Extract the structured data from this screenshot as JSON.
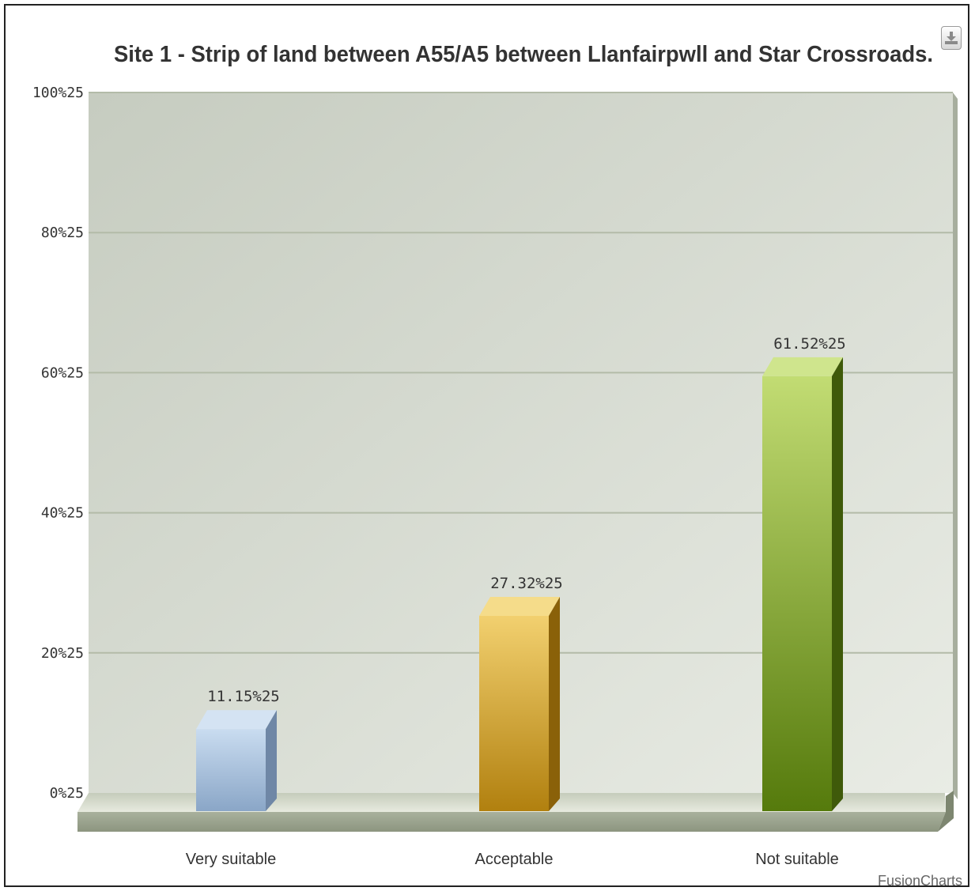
{
  "chart_data": {
    "type": "bar",
    "title": "Site 1 - Strip of land between A55/A5 between Llanfairpwll and Star Crossroads.",
    "categories": [
      "Very suitable",
      "Acceptable",
      "Not suitable"
    ],
    "values": [
      11.15,
      27.32,
      61.52
    ],
    "value_labels": [
      "11.15%25",
      "27.32%25",
      "61.52%25"
    ],
    "yticks": [
      {
        "value": 0,
        "label": "0%25"
      },
      {
        "value": 20,
        "label": "20%25"
      },
      {
        "value": 40,
        "label": "40%25"
      },
      {
        "value": 60,
        "label": "60%25"
      },
      {
        "value": 80,
        "label": "80%25"
      },
      {
        "value": 100,
        "label": "100%25"
      }
    ],
    "ylim": [
      0,
      100
    ],
    "xlabel": "",
    "ylabel": "",
    "grid": true,
    "legend": "none",
    "colors": [
      "#a9c2df",
      "#d9a62c",
      "#7ea232"
    ]
  },
  "branding": {
    "watermark": "FusionCharts"
  },
  "toolbar": {
    "export_icon": "download-icon"
  }
}
